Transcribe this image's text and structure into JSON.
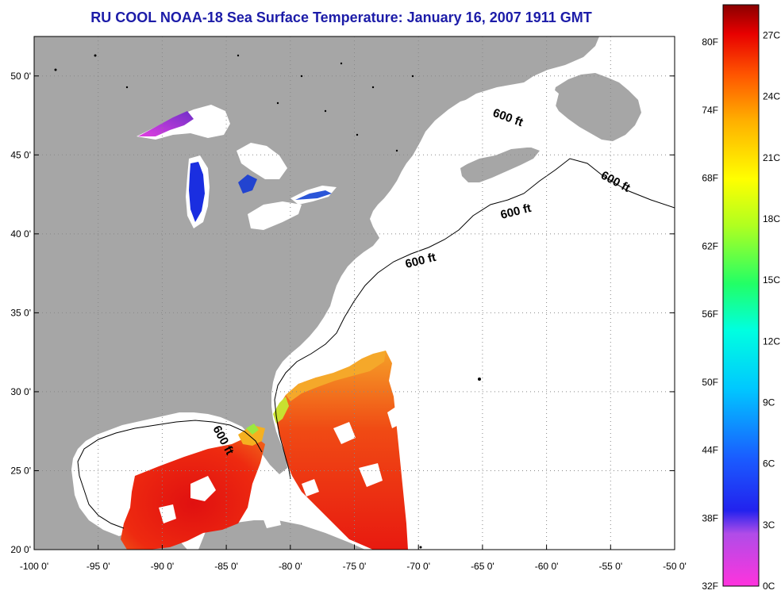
{
  "title": "RU COOL  NOAA-18  Sea Surface Temperature:  January 16, 2007 1911 GMT",
  "map": {
    "lon_range": [
      -100,
      -50
    ],
    "lat_range": [
      20,
      52.5
    ],
    "lon_ticks": [
      {
        "value": -100,
        "label": "-100 0'"
      },
      {
        "value": -95,
        "label": "-95 0'"
      },
      {
        "value": -90,
        "label": "-90 0'"
      },
      {
        "value": -85,
        "label": "-85 0'"
      },
      {
        "value": -80,
        "label": "-80 0'"
      },
      {
        "value": -75,
        "label": "-75 0'"
      },
      {
        "value": -70,
        "label": "-70 0'"
      },
      {
        "value": -65,
        "label": "-65 0'"
      },
      {
        "value": -60,
        "label": "-60 0'"
      },
      {
        "value": -55,
        "label": "-55 0'"
      },
      {
        "value": -50,
        "label": "-50 0'"
      }
    ],
    "lat_ticks": [
      {
        "value": 20,
        "label": "20 0'"
      },
      {
        "value": 25,
        "label": "25 0'"
      },
      {
        "value": 30,
        "label": "30 0'"
      },
      {
        "value": 35,
        "label": "35 0'"
      },
      {
        "value": 40,
        "label": "40 0'"
      },
      {
        "value": 45,
        "label": "45 0'"
      },
      {
        "value": 50,
        "label": "50 0'"
      }
    ],
    "contour_labels": [
      "600 ft",
      "600 ft",
      "600 ft",
      "600 ft",
      "600 ft"
    ],
    "colors": {
      "land": "#a6a6a6",
      "ocean_no_data": "#ffffff",
      "grid": "#888888",
      "title": "#1c1ca8"
    }
  },
  "colorbar": {
    "fahrenheit": [
      "80F",
      "74F",
      "68F",
      "62F",
      "56F",
      "50F",
      "44F",
      "38F",
      "32F"
    ],
    "celsius": [
      "27C",
      "24C",
      "21C",
      "18C",
      "15C",
      "12C",
      "9C",
      "6C",
      "3C",
      "0C"
    ],
    "range_celsius": [
      0,
      28.5
    ]
  }
}
